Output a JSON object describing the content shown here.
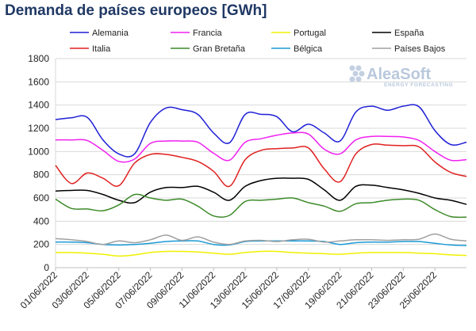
{
  "title": "Demanda de países europeos [GWh]",
  "logo": {
    "name": "AleaSoft",
    "tagline": "ENERGY FORECASTING"
  },
  "chart_data": {
    "type": "line",
    "title": "Demanda de países europeos [GWh]",
    "xlabel": "",
    "ylabel": "",
    "ylim": [
      0,
      1800
    ],
    "yticks": [
      0,
      200,
      400,
      600,
      800,
      1000,
      1200,
      1400,
      1600,
      1800
    ],
    "grid": true,
    "legend_position": "top",
    "xtick_labels": [
      "01/06/2022",
      "03/06/2022",
      "05/06/2022",
      "07/06/2022",
      "09/06/2022",
      "11/06/2022",
      "13/06/2022",
      "15/06/2022",
      "17/06/2022",
      "19/06/2022",
      "21/06/2022",
      "23/06/2022",
      "25/06/2022"
    ],
    "x": [
      "01/06",
      "02/06",
      "03/06",
      "04/06",
      "05/06",
      "06/06",
      "07/06",
      "08/06",
      "09/06",
      "10/06",
      "11/06",
      "12/06",
      "13/06",
      "14/06",
      "15/06",
      "16/06",
      "17/06",
      "18/06",
      "19/06",
      "20/06",
      "21/06",
      "22/06",
      "23/06",
      "24/06",
      "25/06",
      "26/06",
      "27/06"
    ],
    "series": [
      {
        "name": "Alemania",
        "color": "#1f1fd6",
        "values": [
          1275,
          1290,
          1295,
          1100,
          980,
          980,
          1250,
          1375,
          1360,
          1320,
          1160,
          1075,
          1320,
          1320,
          1300,
          1170,
          1235,
          1160,
          1090,
          1340,
          1390,
          1355,
          1390,
          1385,
          1180,
          1060,
          1080
        ]
      },
      {
        "name": "Francia",
        "color": "#f020f0",
        "values": [
          1100,
          1100,
          1095,
          1010,
          915,
          935,
          1070,
          1090,
          1090,
          1080,
          985,
          925,
          1080,
          1110,
          1140,
          1160,
          1150,
          1020,
          980,
          1100,
          1130,
          1130,
          1125,
          1095,
          1000,
          925,
          930
        ]
      },
      {
        "name": "Portugal",
        "color": "#f0f000",
        "values": [
          130,
          130,
          125,
          115,
          100,
          110,
          130,
          140,
          140,
          135,
          125,
          115,
          130,
          140,
          140,
          130,
          125,
          120,
          115,
          125,
          130,
          130,
          130,
          125,
          120,
          110,
          105
        ]
      },
      {
        "name": "España",
        "color": "#000000",
        "values": [
          660,
          665,
          665,
          630,
          580,
          560,
          650,
          690,
          690,
          700,
          650,
          580,
          700,
          750,
          770,
          770,
          760,
          670,
          580,
          700,
          710,
          690,
          670,
          640,
          600,
          580,
          545
        ]
      },
      {
        "name": "Italia",
        "color": "#e02020",
        "values": [
          880,
          725,
          815,
          770,
          705,
          900,
          975,
          975,
          950,
          915,
          830,
          700,
          930,
          1010,
          1025,
          1030,
          1030,
          850,
          740,
          980,
          1060,
          1055,
          1050,
          1040,
          910,
          820,
          785
        ]
      },
      {
        "name": "Gran Bretaña",
        "color": "#3c8a28",
        "values": [
          590,
          510,
          505,
          490,
          540,
          630,
          600,
          580,
          590,
          530,
          445,
          450,
          570,
          580,
          590,
          600,
          560,
          530,
          485,
          550,
          560,
          580,
          590,
          580,
          500,
          440,
          435
        ]
      },
      {
        "name": "Bélgica",
        "color": "#1a9ad6",
        "values": [
          220,
          220,
          215,
          200,
          195,
          200,
          210,
          225,
          230,
          230,
          200,
          195,
          225,
          230,
          230,
          230,
          230,
          225,
          200,
          215,
          220,
          220,
          225,
          225,
          210,
          195,
          190
        ]
      },
      {
        "name": "Países Bajos",
        "color": "#a0a0a0",
        "values": [
          250,
          240,
          225,
          200,
          230,
          215,
          240,
          280,
          235,
          265,
          220,
          200,
          230,
          235,
          225,
          240,
          245,
          220,
          230,
          240,
          240,
          235,
          240,
          245,
          290,
          245,
          230
        ]
      }
    ]
  }
}
